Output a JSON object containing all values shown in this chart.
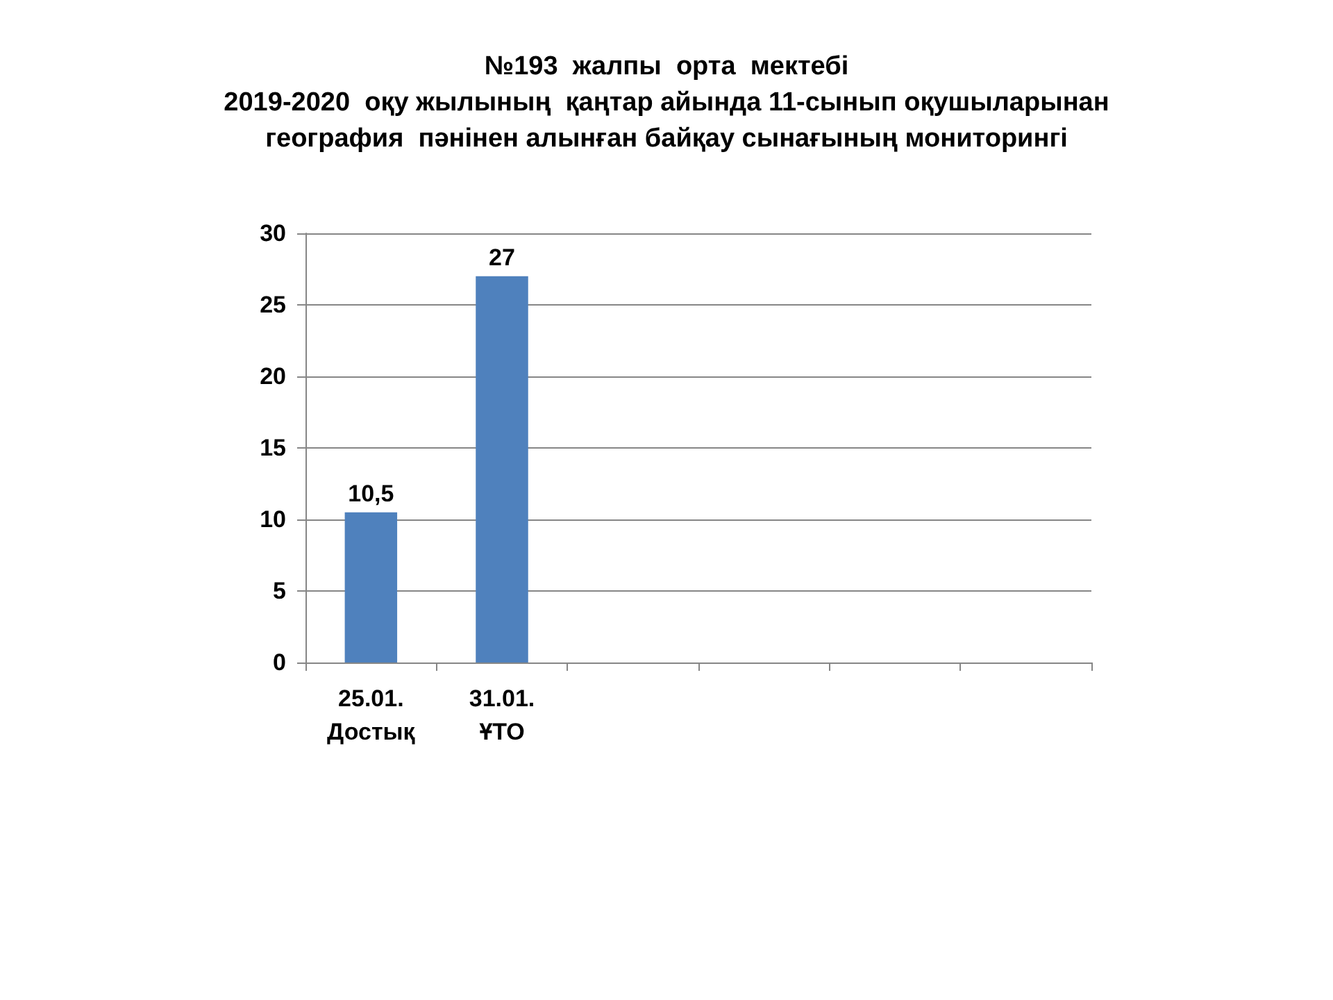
{
  "chart_data": {
    "type": "bar",
    "title": "№193  жалпы  орта  мектебі\n2019-2020  оқу жылының  қаңтар айында 11-сынып оқушыларынан\nгеография  пәнінен алынған байқау сынағының мониторингі",
    "categories": [
      "25.01.\nДостық",
      "31.01.\nҰТО",
      null,
      null,
      null,
      null
    ],
    "values": [
      10.5,
      27,
      null,
      null,
      null,
      null
    ],
    "value_labels": [
      "10,5",
      "27",
      null,
      null,
      null,
      null
    ],
    "color": "#4f81bd",
    "ylim": [
      0,
      30
    ],
    "yticks": [
      0,
      5,
      10,
      15,
      20,
      25,
      30
    ],
    "grid": "y"
  }
}
